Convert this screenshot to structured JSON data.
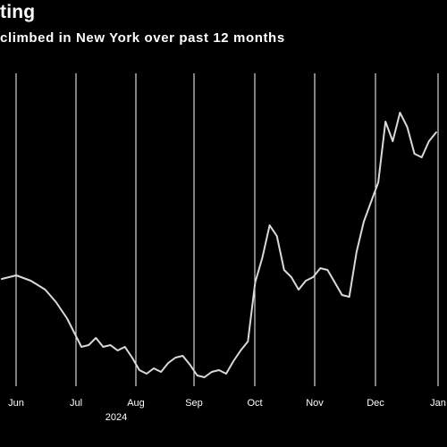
{
  "title": "ting",
  "subtitle": "climbed in New York over past 12 months",
  "colors": {
    "background": "#000000",
    "line": "#d9d9d9",
    "grid": "#ffffff",
    "text": "#ffffff"
  },
  "chart_data": {
    "type": "line",
    "title": "ting",
    "subtitle": "climbed in New York over past 12 months",
    "xlabel": "",
    "ylabel": "",
    "x_tick_labels": [
      "Jun",
      "Jul",
      "Aug",
      "Sep",
      "Oct",
      "Nov",
      "Dec",
      "Jan"
    ],
    "year_label": "2024",
    "y_tick_labels": [],
    "grid": "vertical",
    "legend": "none",
    "note": "",
    "series": [
      {
        "x": [
          0,
          0.4,
          0.8,
          1.2,
          1.5,
          1.8,
          2.0,
          2.2,
          2.4,
          2.6,
          2.8,
          3.0,
          3.2,
          3.4,
          3.6,
          3.8,
          4.0,
          4.2,
          4.4,
          4.6,
          4.8,
          5.0,
          5.2,
          5.4,
          5.6,
          5.8,
          6.0,
          6.2,
          6.4,
          6.6,
          6.8,
          7.0,
          7.2,
          7.4,
          7.6,
          7.8,
          8.0,
          8.2,
          8.4,
          8.6,
          8.8,
          9.0,
          9.2,
          9.4,
          9.6,
          9.8,
          10.0,
          10.2,
          10.4,
          10.6,
          10.8,
          11.0,
          11.2,
          11.4,
          11.6,
          11.8,
          12.0
        ],
        "y": [
          60,
          62,
          59,
          54,
          47,
          38,
          30,
          22,
          23,
          27,
          22,
          23,
          20,
          22,
          16,
          9,
          7,
          10,
          8,
          13,
          16,
          17,
          12,
          6,
          5,
          8,
          9,
          7,
          14,
          20,
          25,
          58,
          72,
          90,
          84,
          65,
          61,
          54,
          59,
          61,
          66,
          65,
          58,
          51,
          50,
          75,
          92,
          103,
          114,
          148,
          137,
          153,
          145,
          130,
          128,
          137,
          142
        ]
      }
    ],
    "x_range": [
      0,
      12.3
    ],
    "y_range": [
      0,
      175
    ]
  }
}
